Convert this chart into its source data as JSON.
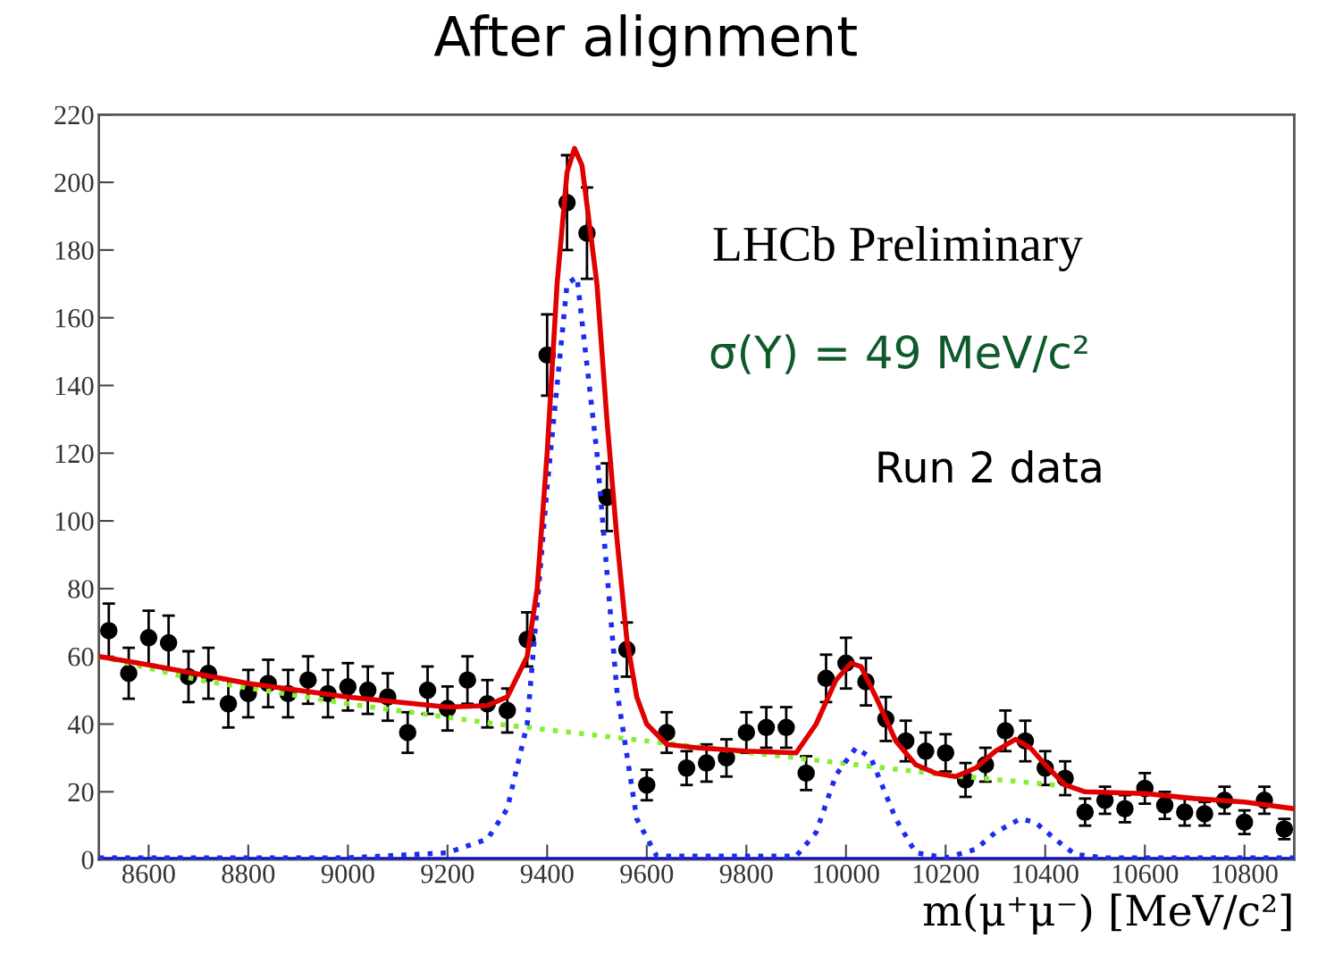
{
  "chart_data": {
    "type": "scatter",
    "title": "After alignment",
    "xlabel": "m(μ⁺μ⁻) [MeV/c²]",
    "annotations": [
      "LHCb Preliminary",
      "σ(Y) = 49 MeV/c²",
      "Run 2 data"
    ],
    "xlim": [
      8500,
      10900
    ],
    "ylim": [
      0,
      220
    ],
    "xticks": [
      8600,
      8800,
      9000,
      9200,
      9400,
      9600,
      9800,
      10000,
      10200,
      10400,
      10600,
      10800
    ],
    "yticks": [
      0,
      20,
      40,
      60,
      80,
      100,
      120,
      140,
      160,
      180,
      200,
      220
    ],
    "grid": false,
    "legend": false,
    "series": [
      {
        "type": "line",
        "color": "#1010cc",
        "line_style": "solid",
        "x": [
          8500,
          10900
        ],
        "values": [
          0,
          0
        ]
      },
      {
        "type": "line",
        "color": "#88ee33",
        "line_style": "dotted",
        "x": [
          8500,
          8700,
          9000,
          9300,
          9600,
          9900,
          10200,
          10420
        ],
        "values": [
          60,
          53,
          46,
          40,
          35,
          30,
          25,
          22
        ]
      },
      {
        "type": "line",
        "color": "#1a2cf0",
        "line_style": "dotted",
        "x": [
          8500,
          9000,
          9200,
          9280,
          9320,
          9360,
          9400,
          9440,
          9460,
          9500,
          9540,
          9580,
          9620,
          9900,
          9940,
          9980,
          10020,
          10050,
          10100,
          10140,
          10200,
          10260,
          10300,
          10350,
          10380,
          10420,
          10460,
          10520,
          10900
        ],
        "values": [
          0.5,
          0.5,
          2,
          6,
          15,
          40,
          110,
          170,
          172,
          120,
          50,
          12,
          1,
          1,
          8,
          25,
          33,
          30,
          12,
          2,
          0.5,
          3,
          8,
          12,
          11,
          6,
          1.5,
          0.5,
          0.5
        ]
      },
      {
        "type": "line",
        "color": "#e00000",
        "line_style": "solid",
        "x": [
          8500,
          8600,
          8800,
          9000,
          9200,
          9280,
          9320,
          9360,
          9380,
          9400,
          9420,
          9440,
          9455,
          9470,
          9500,
          9520,
          9540,
          9560,
          9580,
          9600,
          9640,
          9700,
          9800,
          9900,
          9940,
          9980,
          10010,
          10030,
          10060,
          10100,
          10140,
          10180,
          10220,
          10260,
          10300,
          10340,
          10370,
          10400,
          10440,
          10480,
          10600,
          10700,
          10800,
          10900
        ],
        "values": [
          60,
          57.5,
          52,
          48,
          45,
          45.5,
          48,
          60,
          80,
          120,
          170,
          203,
          210,
          205,
          170,
          130,
          95,
          65,
          48,
          40,
          34,
          33,
          32,
          31.5,
          40,
          53,
          58,
          57,
          48,
          35,
          28,
          25.5,
          24.5,
          27,
          32,
          35.5,
          33,
          28,
          22,
          20,
          19.5,
          18,
          17,
          15
        ]
      },
      {
        "color": "#000000",
        "marker": "circle",
        "x": [
          8520,
          8560,
          8600,
          8640,
          8680,
          8720,
          8760,
          8800,
          8840,
          8880,
          8920,
          8960,
          9000,
          9040,
          9080,
          9120,
          9160,
          9200,
          9240,
          9280,
          9320,
          9360,
          9400,
          9440,
          9480,
          9520,
          9560,
          9600,
          9640,
          9680,
          9720,
          9760,
          9800,
          9840,
          9880,
          9920,
          9960,
          10000,
          10040,
          10080,
          10120,
          10160,
          10200,
          10240,
          10280,
          10320,
          10360,
          10400,
          10440,
          10480,
          10520,
          10560,
          10600,
          10640,
          10680,
          10720,
          10760,
          10800,
          10840,
          10880
        ],
        "values": [
          67.6,
          55,
          65.5,
          64,
          54,
          55,
          46,
          49,
          52,
          49,
          53,
          49,
          51,
          50,
          48,
          37.5,
          50,
          44.6,
          53,
          46,
          44,
          65,
          149,
          194,
          185,
          107,
          62,
          22,
          37.5,
          27,
          28.5,
          30,
          37.5,
          39,
          39,
          25.5,
          53.5,
          58,
          52.5,
          41.5,
          35,
          32,
          31.5,
          23.5,
          28,
          38,
          35,
          27,
          24,
          14,
          17.5,
          15,
          21,
          16,
          14,
          13.5,
          17.5,
          11,
          17.5,
          9
        ],
        "errors": [
          8,
          7.5,
          8,
          8,
          7.5,
          7.5,
          7,
          7,
          7,
          7,
          7,
          7,
          7,
          7,
          7,
          6,
          7,
          6.5,
          7,
          7,
          6.5,
          8,
          12,
          14,
          13.5,
          10,
          8,
          4.5,
          6,
          5,
          5.5,
          5.5,
          6,
          6,
          6,
          5,
          7,
          7.5,
          7,
          6.5,
          6,
          5.5,
          5.5,
          5,
          5,
          6,
          6,
          5,
          5,
          4,
          4,
          4,
          4.5,
          4,
          4,
          3.5,
          4,
          3.5,
          4,
          3
        ]
      }
    ]
  }
}
